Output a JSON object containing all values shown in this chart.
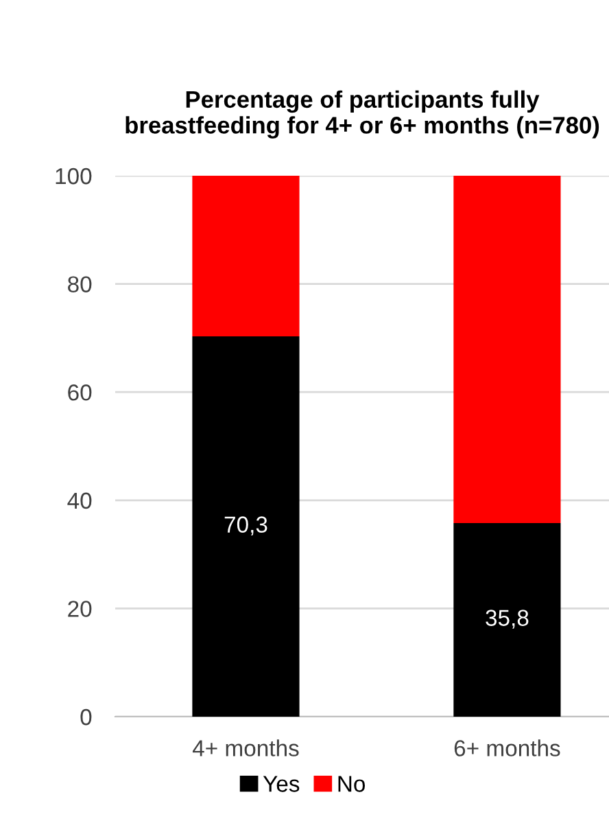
{
  "chart_data": {
    "type": "bar",
    "stacked": true,
    "title": "Percentage of participants fully breastfeeding for 4+ or 6+ months (n=780)",
    "categories": [
      "4+ months",
      "6+ months"
    ],
    "series": [
      {
        "name": "Yes",
        "color": "#000000",
        "values": [
          70.3,
          35.8
        ],
        "value_labels": [
          "70,3",
          "35,8"
        ]
      },
      {
        "name": "No",
        "color": "#ff0000",
        "values": [
          29.7,
          64.2
        ]
      }
    ],
    "ylim": [
      0,
      100
    ],
    "yticks": [
      0,
      20,
      40,
      60,
      80,
      100
    ],
    "grid": "y",
    "legend": "bottom"
  }
}
